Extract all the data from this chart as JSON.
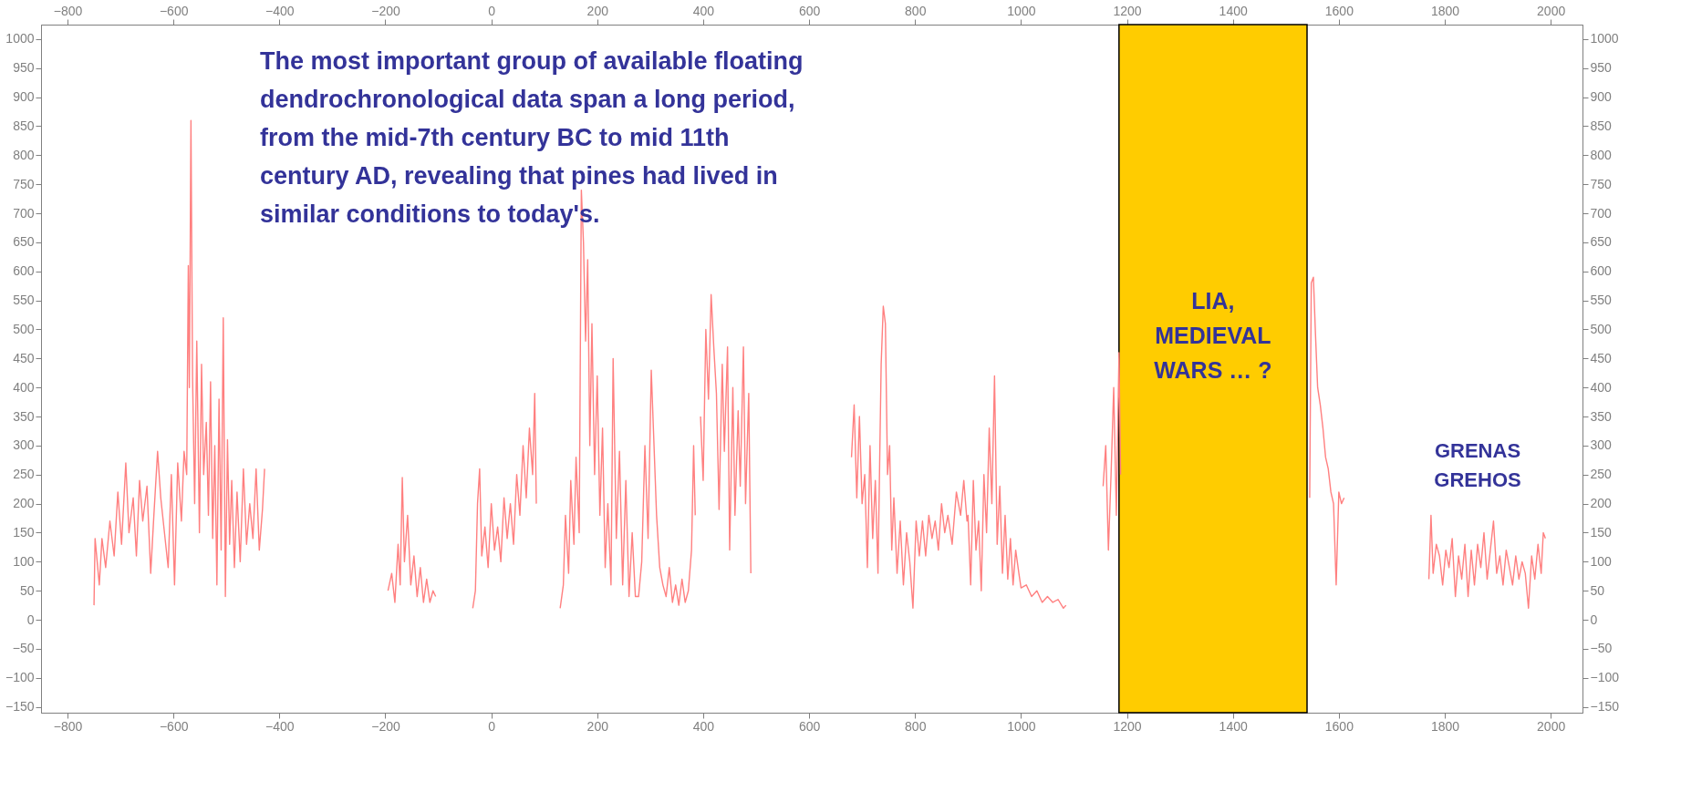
{
  "chart_data": {
    "type": "line",
    "xlim": [
      -850,
      2060
    ],
    "ylim": [
      -160,
      1025
    ],
    "x2lim": [
      -850,
      2060
    ],
    "y2lim": [
      -160,
      1025
    ],
    "xticks": [
      -800,
      -600,
      -400,
      -200,
      0,
      200,
      400,
      600,
      800,
      1000,
      1200,
      1400,
      1600,
      1800,
      2000
    ],
    "x2ticks": [
      -800,
      -600,
      -400,
      -200,
      0,
      200,
      400,
      600,
      800,
      1000,
      1200,
      1400,
      1600,
      1800,
      2000
    ],
    "yticks": [
      -150,
      -100,
      -50,
      0,
      50,
      100,
      150,
      200,
      250,
      300,
      350,
      400,
      450,
      500,
      550,
      600,
      650,
      700,
      750,
      800,
      850,
      900,
      950,
      1000
    ],
    "y2ticks": [
      -150,
      -100,
      -50,
      0,
      50,
      100,
      150,
      200,
      250,
      300,
      350,
      400,
      450,
      500,
      550,
      600,
      650,
      700,
      750,
      800,
      850,
      900,
      950,
      1000
    ],
    "marker": "none",
    "line_style": "solid",
    "bands": [
      {
        "axis": "x",
        "from": 1185,
        "to": 1540,
        "label": "LIA, MEDIEVAL WARS … ?",
        "color": "#ffcc00"
      }
    ],
    "annotations": [
      "The most important group of available floating dendrochronological data span a long period, from the mid-7th century BC to mid 11th century AD, revealing that pines had lived in similar conditions to today's.",
      "GRENAS GREHOS"
    ],
    "series": [
      {
        "color": "#ff8080",
        "x": [
          -750,
          -748,
          -740,
          -735,
          -728,
          -720,
          -712,
          -705,
          -698,
          -690,
          -684,
          -676,
          -670,
          -664,
          -658,
          -650,
          -643,
          -637,
          -630,
          -624,
          -617,
          -610,
          -604,
          -598,
          -592,
          -585,
          -580,
          -575,
          -572,
          -570,
          -567,
          -564,
          -560,
          -556,
          -551,
          -547,
          -543,
          -538,
          -534,
          -530,
          -526,
          -522,
          -518,
          -514,
          -510,
          -506,
          -502,
          -498,
          -494,
          -490,
          -485,
          -480,
          -474,
          -468,
          -462,
          -456,
          -450,
          -444,
          -438,
          -432,
          -428,
          -300,
          -195,
          -188,
          -182,
          -176,
          -172,
          -168,
          -164,
          -158,
          -152,
          -146,
          -140,
          -134,
          -128,
          -122,
          -116,
          -110,
          -105,
          -70,
          -35,
          -30,
          -26,
          -22,
          -18,
          -12,
          -6,
          0,
          6,
          12,
          18,
          24,
          30,
          36,
          42,
          48,
          54,
          60,
          66,
          72,
          78,
          82,
          85,
          110,
          130,
          136,
          140,
          146,
          150,
          156,
          160,
          166,
          170,
          174,
          178,
          182,
          186,
          190,
          195,
          200,
          205,
          210,
          215,
          220,
          226,
          230,
          236,
          242,
          248,
          254,
          260,
          266,
          272,
          278,
          284,
          290,
          296,
          302,
          306,
          312,
          318,
          324,
          330,
          336,
          342,
          348,
          354,
          360,
          366,
          372,
          378,
          382,
          385,
          390,
          395,
          400,
          405,
          410,
          415,
          420,
          425,
          430,
          436,
          440,
          446,
          450,
          456,
          460,
          466,
          470,
          476,
          480,
          486,
          490,
          600,
          680,
          685,
          690,
          695,
          700,
          705,
          710,
          715,
          720,
          725,
          730,
          736,
          740,
          744,
          748,
          752,
          756,
          760,
          766,
          772,
          778,
          784,
          790,
          796,
          802,
          808,
          814,
          820,
          826,
          832,
          838,
          844,
          850,
          856,
          862,
          870,
          878,
          886,
          892,
          898,
          900,
          905,
          910,
          915,
          920,
          925,
          930,
          935,
          940,
          945,
          950,
          955,
          960,
          965,
          970,
          975,
          980,
          985,
          990,
          996,
          1000,
          1010,
          1020,
          1030,
          1040,
          1050,
          1060,
          1070,
          1080,
          1085,
          1120,
          1155,
          1160,
          1165,
          1170,
          1175,
          1180,
          1185,
          1188,
          1300,
          1545,
          1548,
          1552,
          1556,
          1560,
          1565,
          1570,
          1575,
          1580,
          1585,
          1590,
          1595,
          1600,
          1605,
          1610,
          1700,
          1770,
          1774,
          1778,
          1784,
          1790,
          1796,
          1802,
          1808,
          1814,
          1820,
          1826,
          1832,
          1838,
          1844,
          1850,
          1856,
          1862,
          1868,
          1874,
          1880,
          1886,
          1892,
          1898,
          1904,
          1910,
          1916,
          1922,
          1928,
          1934,
          1940,
          1946,
          1952,
          1958,
          1964,
          1970,
          1976,
          1982,
          1986,
          1990
        ],
        "values": [
          25,
          140,
          60,
          140,
          90,
          170,
          110,
          220,
          130,
          270,
          150,
          210,
          110,
          240,
          170,
          230,
          80,
          180,
          290,
          210,
          150,
          90,
          250,
          60,
          270,
          170,
          290,
          250,
          610,
          400,
          860,
          420,
          200,
          480,
          150,
          440,
          250,
          340,
          180,
          410,
          140,
          300,
          60,
          380,
          120,
          520,
          40,
          310,
          130,
          240,
          90,
          220,
          100,
          260,
          130,
          200,
          140,
          260,
          120,
          190,
          260,
          null,
          50,
          80,
          30,
          130,
          60,
          245,
          100,
          180,
          60,
          110,
          40,
          90,
          30,
          70,
          30,
          50,
          40,
          null,
          20,
          50,
          200,
          260,
          110,
          160,
          90,
          200,
          120,
          160,
          100,
          210,
          140,
          200,
          130,
          250,
          180,
          300,
          210,
          330,
          250,
          390,
          200,
          null,
          20,
          60,
          180,
          80,
          240,
          130,
          280,
          150,
          740,
          650,
          480,
          620,
          300,
          510,
          250,
          420,
          180,
          330,
          90,
          200,
          60,
          450,
          140,
          290,
          60,
          240,
          40,
          150,
          40,
          40,
          100,
          300,
          140,
          430,
          330,
          180,
          90,
          60,
          40,
          90,
          30,
          60,
          25,
          70,
          30,
          50,
          120,
          300,
          180,
          null,
          350,
          240,
          500,
          380,
          560,
          470,
          390,
          190,
          440,
          290,
          470,
          120,
          400,
          180,
          360,
          230,
          470,
          200,
          390,
          80,
          null,
          280,
          370,
          210,
          350,
          200,
          250,
          90,
          300,
          140,
          240,
          80,
          440,
          540,
          510,
          250,
          300,
          120,
          210,
          80,
          170,
          60,
          150,
          100,
          20,
          170,
          110,
          170,
          110,
          180,
          140,
          170,
          120,
          200,
          150,
          180,
          130,
          220,
          180,
          240,
          170,
          180,
          60,
          240,
          120,
          170,
          50,
          250,
          150,
          330,
          200,
          420,
          130,
          230,
          80,
          180,
          70,
          140,
          60,
          120,
          80,
          55,
          60,
          40,
          50,
          30,
          40,
          30,
          35,
          20,
          25,
          null,
          230,
          300,
          120,
          250,
          400,
          180,
          460,
          250,
          null,
          210,
          580,
          590,
          490,
          400,
          370,
          330,
          280,
          260,
          220,
          200,
          60,
          220,
          200,
          210,
          null,
          70,
          180,
          80,
          130,
          110,
          60,
          120,
          90,
          140,
          40,
          110,
          70,
          130,
          40,
          120,
          60,
          130,
          90,
          150,
          70,
          120,
          170,
          80,
          110,
          60,
          120,
          90,
          60,
          110,
          70,
          100,
          80,
          20,
          110,
          70,
          130,
          80,
          150,
          140
        ]
      }
    ]
  }
}
